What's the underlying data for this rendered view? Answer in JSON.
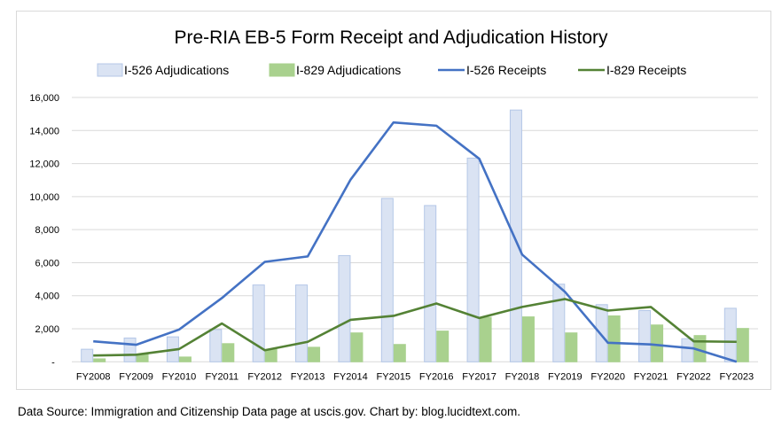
{
  "chart_data": {
    "type": "bar",
    "title": "Pre-RIA EB-5 Form Receipt and Adjudication History",
    "categories": [
      "FY2008",
      "FY2009",
      "FY2010",
      "FY2011",
      "FY2012",
      "FY2013",
      "FY2014",
      "FY2015",
      "FY2016",
      "FY2017",
      "FY2018",
      "FY2019",
      "FY2020",
      "FY2021",
      "FY2022",
      "FY2023"
    ],
    "ylim": [
      0,
      16000
    ],
    "yticks": [
      "-",
      "2,000",
      "4,000",
      "6,000",
      "8,000",
      "10,000",
      "12,000",
      "14,000",
      "16,000"
    ],
    "grid": true,
    "legend_position": "top",
    "series": [
      {
        "name": "I-526 Adjudications",
        "kind": "bar",
        "color": "#dae3f3",
        "stroke": "#b4c7e7",
        "values": [
          760,
          1440,
          1510,
          1950,
          4650,
          4650,
          6430,
          9890,
          9460,
          12330,
          15240,
          4700,
          3460,
          3100,
          1400,
          3240
        ]
      },
      {
        "name": "I-829 Adjudications",
        "kind": "bar",
        "color": "#a9d18e",
        "stroke": "#a9d18e",
        "values": [
          180,
          450,
          290,
          1100,
          740,
          880,
          1750,
          1050,
          1860,
          2690,
          2720,
          1750,
          2780,
          2230,
          1590,
          2020
        ]
      },
      {
        "name": "I-526 Receipts",
        "kind": "line",
        "color": "#4472c4",
        "values": [
          1240,
          1030,
          1950,
          3860,
          6050,
          6380,
          11030,
          14490,
          14290,
          12290,
          6490,
          4230,
          1150,
          1050,
          810,
          0
        ]
      },
      {
        "name": "I-829 Receipts",
        "kind": "line",
        "color": "#548235",
        "values": [
          380,
          430,
          770,
          2320,
          700,
          1210,
          2540,
          2780,
          3530,
          2650,
          3320,
          3800,
          3100,
          3320,
          1240,
          1210
        ]
      }
    ]
  },
  "source": "Data Source: Immigration and Citizenship Data page at uscis.gov. Chart by: blog.lucidtext.com."
}
